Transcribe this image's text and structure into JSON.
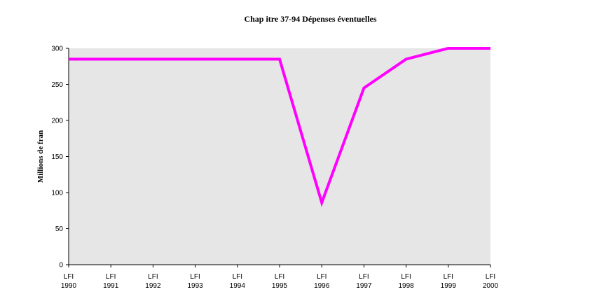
{
  "chart_data": {
    "type": "line",
    "title": "Chap itre 37-94 Dépenses éventuelles",
    "xlabel": "",
    "ylabel": "Millions de fran",
    "categories": [
      [
        "LFI",
        "1990"
      ],
      [
        "LFI",
        "1991"
      ],
      [
        "LFI",
        "1992"
      ],
      [
        "LFI",
        "1993"
      ],
      [
        "LFI",
        "1994"
      ],
      [
        "LFI",
        "1995"
      ],
      [
        "LFI",
        "1996"
      ],
      [
        "LFI",
        "1997"
      ],
      [
        "LFI",
        "1998"
      ],
      [
        "LFI",
        "1999"
      ],
      [
        "LFI",
        "2000"
      ]
    ],
    "series": [
      {
        "color": "#ff00ff",
        "values": [
          285,
          285,
          285,
          285,
          285,
          285,
          86,
          245,
          285,
          300,
          300
        ]
      }
    ],
    "ylim": [
      0,
      300
    ],
    "yticks": [
      0,
      50,
      100,
      150,
      200,
      250,
      300
    ],
    "ytick_labels": [
      "0",
      "50",
      "100",
      "150",
      "200",
      "250",
      "300"
    ],
    "grid": false,
    "legend": "none",
    "plot_background": "#e6e6e6"
  }
}
